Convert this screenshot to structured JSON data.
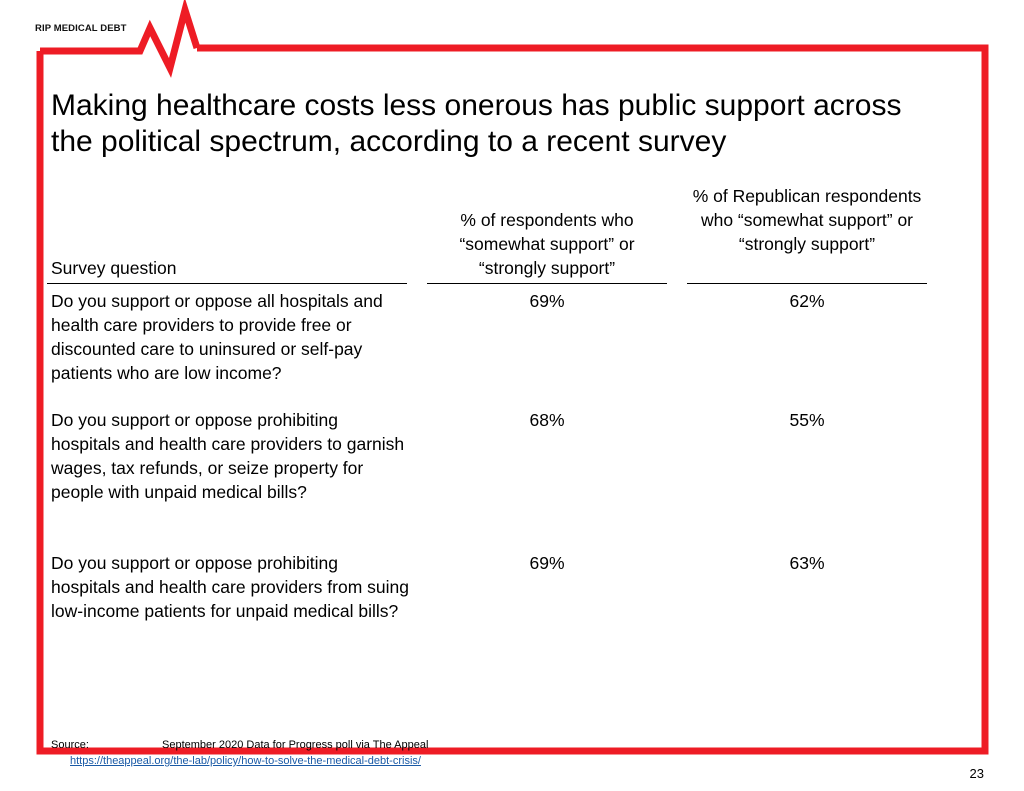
{
  "brand": {
    "name": "RIP MEDICAL DEBT",
    "accent_color": "#ee1c25"
  },
  "title": "Making healthcare costs less onerous has public support across the political spectrum, according to a recent survey",
  "table": {
    "headers": {
      "question": "Survey question",
      "col1": "% of respondents who “somewhat support” or “strongly support”",
      "col2": "% of Republican respondents who “somewhat support” or “strongly support”"
    },
    "rows": [
      {
        "question": "Do you support or oppose all hospitals and health care providers to provide free or discounted care to uninsured or self-pay patients who are low income?",
        "all": "69%",
        "republican": "62%"
      },
      {
        "question": "Do you support or oppose prohibiting hospitals and health care providers to garnish wages, tax refunds, or seize property for people with unpaid medical bills?",
        "all": "68%",
        "republican": "55%"
      },
      {
        "question": "Do you support or oppose prohibiting hospitals and health care providers from suing low-income patients for unpaid medical bills?",
        "all": "69%",
        "republican": "63%"
      }
    ]
  },
  "source": {
    "label": "Source:",
    "text": "September 2020 Data for Progress poll via The Appeal",
    "link": "https://theappeal.org/the-lab/policy/how-to-solve-the-medical-debt-crisis/"
  },
  "page_number": "23"
}
